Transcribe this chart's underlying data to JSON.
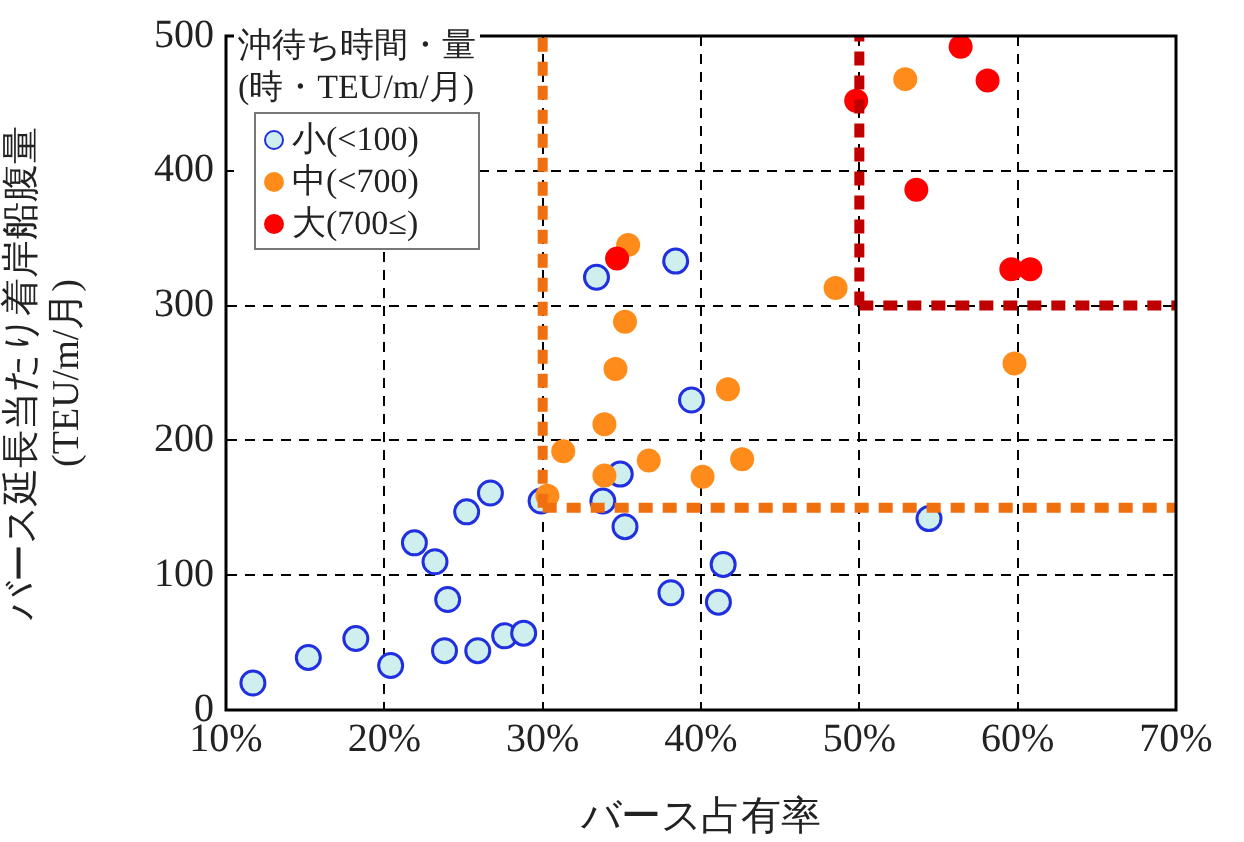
{
  "chart_data": {
    "type": "scatter",
    "xlabel": "バース占有率",
    "ylabel": "バース延長当たり着岸船腹量\n(TEU/m/月)",
    "legend_title": "沖待ち時間・量\n(時・TEU/m/月)",
    "legend": "top left",
    "marker": "circle",
    "grid": true,
    "xlim": [
      10,
      70
    ],
    "xticks": [
      {
        "value": 10,
        "label": "10%"
      },
      {
        "value": 20,
        "label": "20%"
      },
      {
        "value": 30,
        "label": "30%"
      },
      {
        "value": 40,
        "label": "40%"
      },
      {
        "value": 50,
        "label": "50%"
      },
      {
        "value": 60,
        "label": "60%"
      },
      {
        "value": 70,
        "label": "70%"
      }
    ],
    "ylim": [
      0,
      500
    ],
    "yticks": [
      0,
      100,
      200,
      300,
      400,
      500
    ],
    "series": [
      {
        "name": "小(<100)",
        "color": "#2030e0",
        "x": [
          11.7,
          15.2,
          18.2,
          20.4,
          21.9,
          23.2,
          24.0,
          23.8,
          25.2,
          25.9,
          26.7,
          27.6,
          28.8,
          29.9,
          33.4,
          38.4,
          39.4,
          34.9,
          33.8,
          35.2,
          41.4,
          38.1,
          41.1,
          54.4
        ],
        "values": [
          20,
          39,
          53,
          33,
          124,
          110,
          82,
          44,
          147,
          44,
          161,
          55,
          57,
          155,
          321,
          333,
          230,
          175,
          155,
          136,
          108,
          87,
          80,
          142
        ]
      },
      {
        "name": "中(<700)",
        "color": "#ff8c1a",
        "x": [
          31.3,
          30.3,
          35.4,
          48.5,
          35.2,
          34.6,
          41.7,
          33.9,
          36.7,
          42.6,
          33.9,
          40.1,
          52.9,
          59.8
        ],
        "values": [
          192,
          159,
          345,
          313,
          288,
          253,
          238,
          212,
          185,
          186,
          174,
          173,
          468,
          257
        ]
      },
      {
        "name": "大(700≤)",
        "color": "#ff0000",
        "x": [
          34.7,
          56.4,
          58.1,
          49.8,
          53.6,
          59.6,
          60.8
        ],
        "values": [
          335,
          492,
          467,
          452,
          386,
          327,
          327
        ]
      }
    ],
    "ref_lines": [
      {
        "axis": "x",
        "value": 30,
        "color": "#f07010",
        "line_style": "dashed"
      },
      {
        "axis": "y",
        "value": 150,
        "color": "#f07010",
        "line_style": "dashed"
      },
      {
        "axis": "x",
        "value": 50,
        "color": "#c00000",
        "line_style": "dashed"
      },
      {
        "axis": "y",
        "value": 300,
        "color": "#c00000",
        "line_style": "dashed"
      }
    ]
  }
}
